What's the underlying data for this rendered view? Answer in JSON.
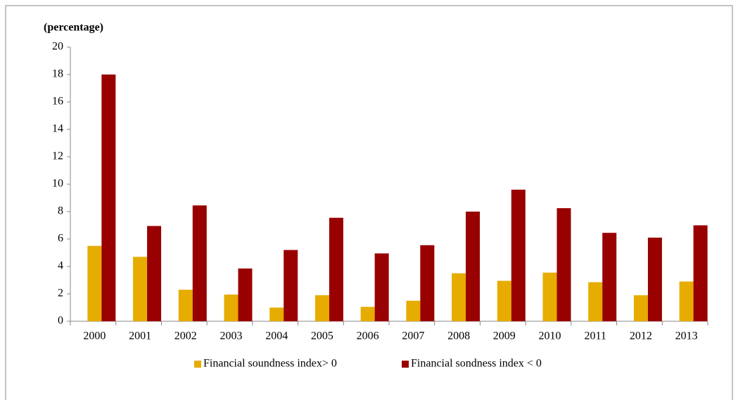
{
  "chart_data": {
    "type": "bar",
    "y_label": "(percentage)",
    "categories": [
      "2000",
      "2001",
      "2002",
      "2003",
      "2004",
      "2005",
      "2006",
      "2007",
      "2008",
      "2009",
      "2010",
      "2011",
      "2012",
      "2013"
    ],
    "series": [
      {
        "name": "Financial soundness index> 0",
        "color": "#e6ac00",
        "values": [
          5.5,
          4.7,
          2.3,
          1.95,
          1.0,
          1.9,
          1.05,
          1.5,
          3.5,
          2.95,
          3.55,
          2.85,
          1.9,
          2.9
        ]
      },
      {
        "name": "Financial sondness index < 0",
        "color": "#990000",
        "values": [
          18.0,
          6.95,
          8.45,
          3.85,
          5.2,
          7.55,
          4.95,
          5.55,
          8.0,
          9.6,
          8.25,
          6.45,
          6.1,
          7.0
        ]
      }
    ],
    "ylim": [
      0,
      20
    ],
    "yticks": [
      0,
      2,
      4,
      6,
      8,
      10,
      12,
      14,
      16,
      18,
      20
    ],
    "grid": false,
    "legend": "bottom"
  }
}
